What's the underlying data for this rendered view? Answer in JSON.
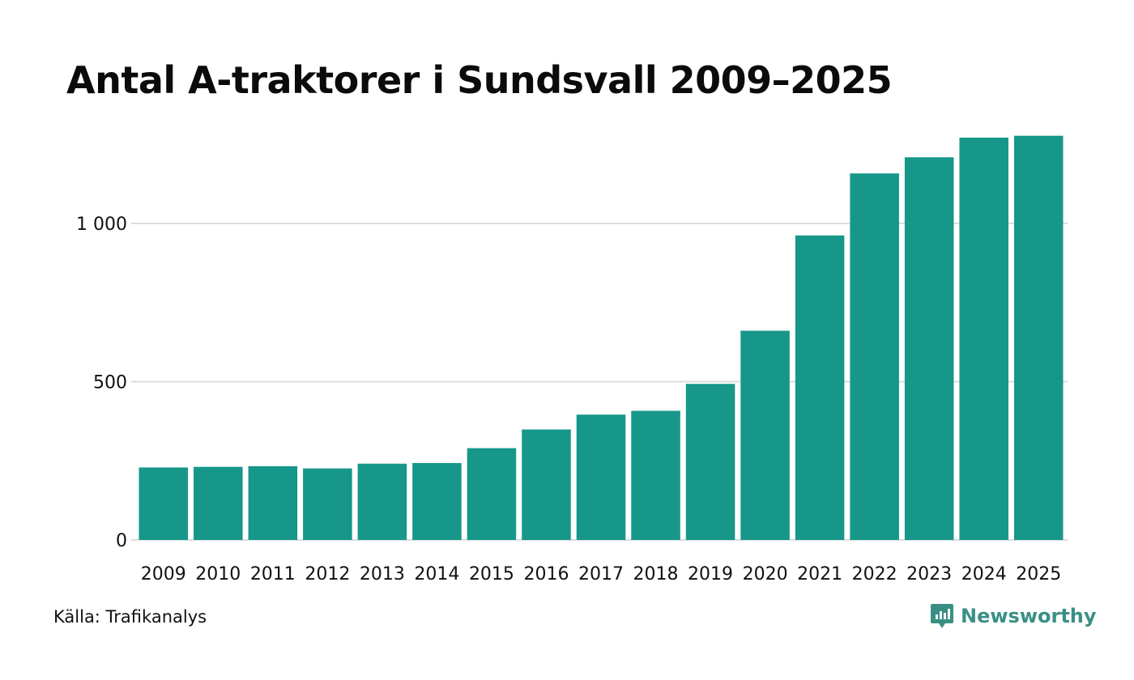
{
  "chart_data": {
    "type": "bar",
    "title": "Antal A-traktorer i Sundsvall 2009–2025",
    "categories": [
      "2009",
      "2010",
      "2011",
      "2012",
      "2013",
      "2014",
      "2015",
      "2016",
      "2017",
      "2018",
      "2019",
      "2020",
      "2021",
      "2022",
      "2023",
      "2024",
      "2025"
    ],
    "values": [
      229,
      231,
      233,
      226,
      241,
      243,
      290,
      349,
      396,
      408,
      493,
      661,
      962,
      1158,
      1209,
      1271,
      1277
    ],
    "xlabel": "",
    "ylabel": "",
    "ylim": [
      0,
      1280
    ],
    "yticks": [
      0,
      500,
      1000
    ],
    "ytick_labels": [
      "0",
      "500",
      "1 000"
    ],
    "grid": true,
    "bar_color": "#16978a",
    "grid_color": "#dddddd"
  },
  "footer": {
    "source": "Källa: Trafikanalys",
    "brand": "Newsworthy",
    "brand_color": "#3a8f85"
  },
  "icons": {
    "logo": "newsworthy-logo-icon"
  }
}
